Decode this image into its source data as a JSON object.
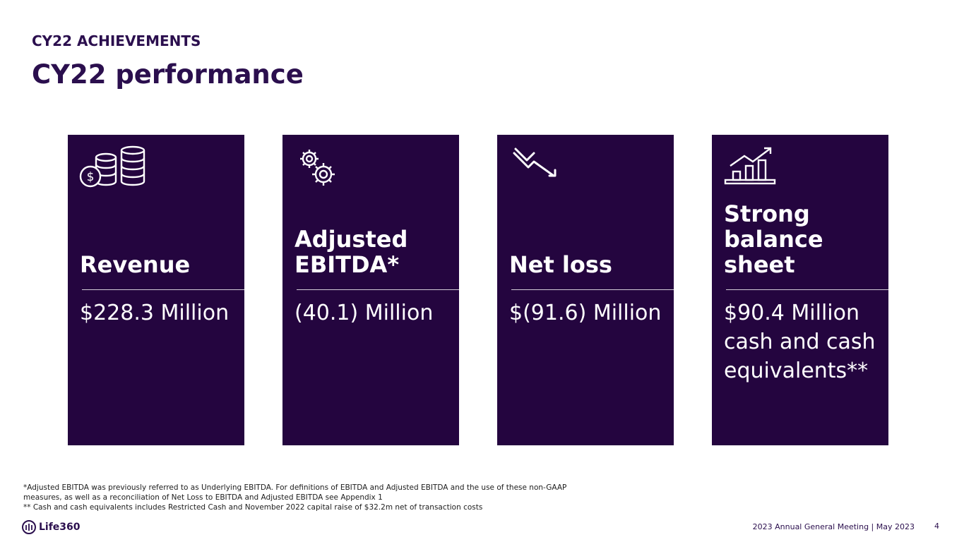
{
  "header": {
    "eyebrow": "CY22 ACHIEVEMENTS",
    "title": "CY22 performance"
  },
  "cards": [
    {
      "icon": "coins-stack-icon",
      "label": "Revenue",
      "value": "$228.3 Million"
    },
    {
      "icon": "gears-icon",
      "label": "Adjusted EBITDA*",
      "value": "(40.1) Million"
    },
    {
      "icon": "trend-down-icon",
      "label": "Net loss",
      "value": "$(91.6) Million"
    },
    {
      "icon": "bar-chart-up-icon",
      "label": "Strong balance sheet",
      "value": "$90.4 Million cash and cash equivalents**"
    }
  ],
  "footnotes": {
    "line1": "*Adjusted EBITDA was previously referred to as Underlying EBITDA. For definitions of EBITDA and Adjusted EBITDA and the use of these non-GAAP",
    "line2": "measures, as well as a reconciliation of Net Loss to EBITDA and Adjusted EBITDA see Appendix 1",
    "line3": "** Cash and cash equivalents includes Restricted Cash and November 2022 capital raise of $32.2m net of transaction costs"
  },
  "footer": {
    "logo_text": "Life360",
    "meeting": "2023 Annual General Meeting  | May 2023",
    "page_number": "4"
  },
  "colors": {
    "card_bg": "#24053f",
    "brand": "#2b0f4e"
  }
}
